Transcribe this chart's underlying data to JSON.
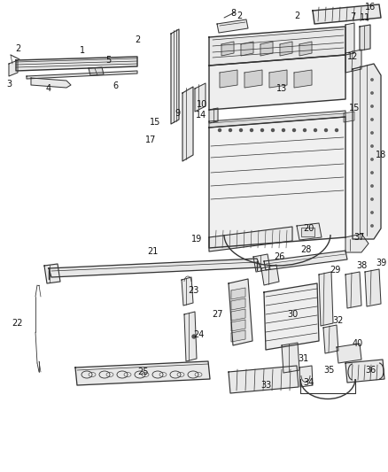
{
  "bg_color": "#ffffff",
  "fig_width": 4.38,
  "fig_height": 5.33,
  "dpi": 100,
  "line_color": "#333333",
  "label_fontsize": 7,
  "label_color": "#111111"
}
